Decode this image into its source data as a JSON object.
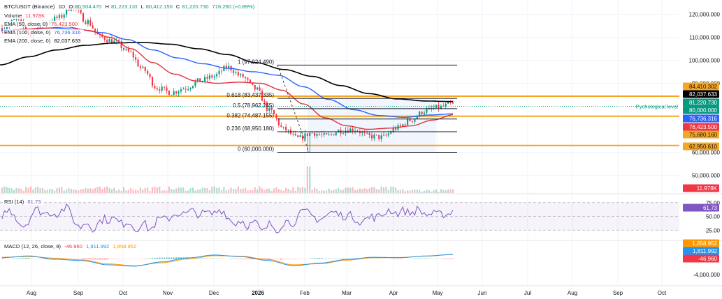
{
  "header": {
    "symbol": "BTC/USDT (Binance)",
    "interval": "1D",
    "open_label": "O",
    "open": "80,504.470",
    "high_label": "H",
    "high": "81,223.110",
    "low_label": "L",
    "low": "80,412.150",
    "close_label": "C",
    "close": "81,220.730",
    "change": "716.260 (+0.89%)",
    "volume_label": "Volume",
    "volume": "11.978K",
    "ema50_label": "EMA (50, close, 0)",
    "ema50": "76,423.500",
    "ema100_label": "EMA (100, close, 0)",
    "ema100": "76,736.316",
    "ema200_label": "EMA (200, close, 0)",
    "ema200": "82,037.633",
    "rsi_label": "RSI (14)",
    "rsi": "61.73",
    "macd_label": "MACD (12, 26, close, 9)",
    "macd_hist": "-46.960",
    "macd_line": "1,811.992",
    "macd_signal": "1,858.952"
  },
  "colors": {
    "up": "#089981",
    "down": "#f23645",
    "ema50": "#e0323c",
    "ema100": "#2962ff",
    "ema200": "#000000",
    "fib_zone": "#e8eefc",
    "level": "#f5a623",
    "rsi": "#7e57c2",
    "macd": "#2196f3",
    "signal": "#ff9800"
  },
  "price_axis": {
    "ticks": [
      "120,000.000",
      "110,000.000",
      "100,000.000",
      "90,000.000",
      "60,000.000",
      "50,000.000"
    ],
    "tick_values": [
      120000,
      110000,
      100000,
      90000,
      60000,
      50000
    ],
    "range": [
      45000,
      125000
    ]
  },
  "price_tags": [
    {
      "text": "84,410.302",
      "value": 84410.302,
      "bg": "#f5a623",
      "fg": "#131722"
    },
    {
      "text": "82,037.633",
      "value": 82037.633,
      "bg": "#000000",
      "fg": "#ffffff"
    },
    {
      "text": "81,220.730",
      "value": 81220.73,
      "bg": "#089981",
      "fg": "#ffffff"
    },
    {
      "text": "80,000.000",
      "value": 80000,
      "bg": "#089981",
      "fg": "#ffffff"
    },
    {
      "text": "76,736.316",
      "value": 76736.316,
      "bg": "#2962ff",
      "fg": "#ffffff"
    },
    {
      "text": "76,423.500",
      "value": 76423.5,
      "bg": "#f23645",
      "fg": "#ffffff"
    },
    {
      "text": "75,680.160",
      "value": 75680.16,
      "bg": "#f5a623",
      "fg": "#131722"
    },
    {
      "text": "62,950.610",
      "value": 62950.61,
      "bg": "#f5a623",
      "fg": "#131722"
    }
  ],
  "volume_tag": {
    "text": "11.978K",
    "bg": "#f23645"
  },
  "levels": [
    {
      "value": 84410.302,
      "label": ""
    },
    {
      "value": 80000,
      "label": "Pychological level"
    },
    {
      "value": 75680.16,
      "label": ""
    },
    {
      "value": 62950.61,
      "label": ""
    }
  ],
  "fib": [
    {
      "label": "1 (97,924.490)",
      "value": 97924.49
    },
    {
      "label": "0.618 (83,437.335)",
      "value": 83437.335
    },
    {
      "label": "0.5 (78,962.245)",
      "value": 78962.245
    },
    {
      "label": "0.382 (74,487.155)",
      "value": 74487.155
    },
    {
      "label": "0.236 (68,950.180)",
      "value": 68950.18
    },
    {
      "label": "0 (60,000.000)",
      "value": 60000
    }
  ],
  "rsi_axis": {
    "ticks": [
      "75.00",
      "50.00",
      "25.00"
    ],
    "tick_values": [
      75,
      50,
      25
    ],
    "tag": "61.73"
  },
  "macd_axis": {
    "ticks": [
      "-4,000.000"
    ],
    "tick_values": [
      -4000
    ],
    "tags": [
      {
        "text": "1,858.952",
        "bg": "#ff9800"
      },
      {
        "text": "1,811.992",
        "bg": "#2196f3"
      },
      {
        "text": "-46.960",
        "bg": "#f23645"
      }
    ]
  },
  "time_axis": [
    "Aug",
    "Sep",
    "Oct",
    "Nov",
    "Dec",
    "2026",
    "Feb",
    "Mar",
    "Apr",
    "May",
    "Jun",
    "Jul",
    "Aug",
    "Sep",
    "Oct"
  ],
  "chart_data": {
    "type": "candlestick",
    "title": "BTC/USDT (Binance), 1D",
    "x": [
      "Aug",
      "Sep",
      "Oct",
      "Nov",
      "Dec",
      "2026",
      "Feb",
      "Mar",
      "Apr",
      "May",
      "Jun",
      "Jul",
      "Aug",
      "Sep",
      "Oct"
    ],
    "close_anchors": [
      114000,
      117500,
      112000,
      116000,
      118500,
      123500,
      117000,
      110000,
      108000,
      103500,
      96000,
      88000,
      86000,
      88000,
      91000,
      93000,
      97000,
      93000,
      87500,
      78000,
      70000,
      66000,
      68500,
      67000,
      69500,
      70000,
      67000,
      66500,
      70500,
      74000,
      78000,
      79500,
      81220.73
    ],
    "ema50_anchors": [
      112000,
      113500,
      114000,
      114500,
      113000,
      110000,
      105000,
      99000,
      94000,
      91000,
      90000,
      90500,
      90000,
      87000,
      81000,
      75000,
      71500,
      70000,
      70500,
      71500,
      74000,
      76423.5
    ],
    "ema100_anchors": [
      113000,
      113500,
      114000,
      113500,
      112000,
      109000,
      104500,
      101000,
      98500,
      96500,
      95000,
      93500,
      88500,
      83000,
      78500,
      76000,
      75200,
      76200,
      76736.316
    ],
    "ema200_anchors": [
      98000,
      101500,
      104500,
      106500,
      107500,
      107800,
      107000,
      105000,
      102500,
      99000,
      96000,
      93000,
      89000,
      85500,
      83200,
      82300,
      82037.633
    ],
    "fib_levels": [
      97924.49,
      83437.335,
      78962.245,
      74487.155,
      68950.18,
      60000
    ],
    "rsi_range": [
      0,
      100
    ],
    "ylim": [
      45000,
      125000
    ],
    "xlabel": "",
    "ylabel": ""
  }
}
